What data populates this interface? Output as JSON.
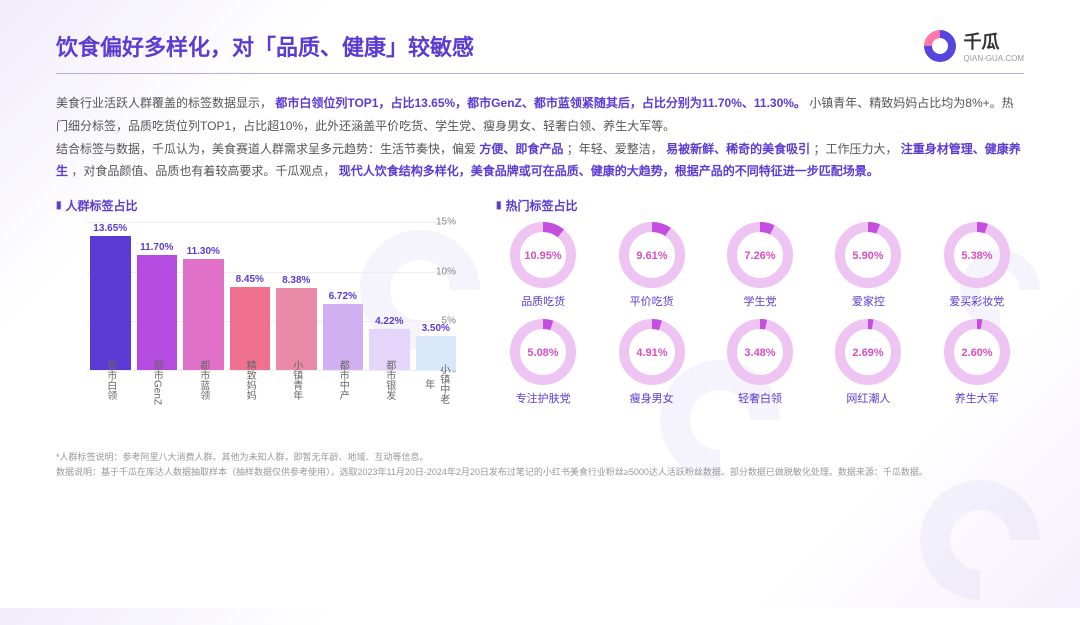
{
  "header": {
    "title": "饮食偏好多样化，对「品质、健康」较敏感",
    "logo_text": "千瓜",
    "logo_sub": "QIAN-GUA.COM"
  },
  "description": {
    "line1_a": "美食行业活跃人群覆盖的标签数据显示，",
    "line1_hl1": "都市白领位列TOP1，占比13.65%，都市GenZ、都市蓝领紧随其后，占比分别为11.70%、11.30%。",
    "line1_b": "小镇青年、精致妈妈占比均为8%+。热门细分标签，品质吃货位列TOP1，占比超10%，此外还涵盖平价吃货、学生党、瘦身男女、轻奢白领、养生大军等。",
    "line2_a": "结合标签与数据，千瓜认为，美食赛道人群需求呈多元趋势：生活节奏快，偏爱",
    "line2_hl1": "方便、即食产品",
    "line2_b": "；年轻、爱整洁，",
    "line2_hl2": "易被新鲜、稀奇的美食吸引",
    "line2_c": "；工作压力大，",
    "line2_hl3": "注重身材管理、健康养生",
    "line2_d": "，对食品颜值、品质也有着较高要求。千瓜观点，",
    "line2_hl4": "现代人饮食结构多样化，美食品牌或可在品质、健康的大趋势，根据产品的不同特征进一步匹配场景。"
  },
  "bar_chart": {
    "title": "人群标签占比",
    "type": "bar",
    "y_ticks": [
      0,
      5,
      10,
      15
    ],
    "y_suffix": "%",
    "ylim_max": 15,
    "grid_color": "#eeeeee",
    "label_color": "#5b3bd4",
    "bars": [
      {
        "label": "都市白领",
        "value": 13.65,
        "value_text": "13.65%",
        "color": "#5b3bd4"
      },
      {
        "label": "都市GenZ",
        "value": 11.7,
        "value_text": "11.70%",
        "color": "#b54be0"
      },
      {
        "label": "都市蓝领",
        "value": 11.3,
        "value_text": "11.30%",
        "color": "#e070c8"
      },
      {
        "label": "精致妈妈",
        "value": 8.45,
        "value_text": "8.45%",
        "color": "#f07090"
      },
      {
        "label": "小镇青年",
        "value": 8.38,
        "value_text": "8.38%",
        "color": "#e88aa8"
      },
      {
        "label": "都市中产",
        "value": 6.72,
        "value_text": "6.72%",
        "color": "#d0b0f0"
      },
      {
        "label": "都市银发",
        "value": 4.22,
        "value_text": "4.22%",
        "color": "#e5d5fa"
      },
      {
        "label": "小镇中老年",
        "value": 3.5,
        "value_text": "3.50%",
        "color": "#d8e8fa"
      }
    ]
  },
  "donut_chart": {
    "title": "热门标签占比",
    "type": "donut",
    "ring_color": "#eec4f3",
    "arc_color": "#c34ee0",
    "pct_color": "#d94fc0",
    "label_color": "#5b3bd4",
    "ring_width": 10,
    "items": [
      {
        "label": "品质吃货",
        "value": 10.95,
        "value_text": "10.95%"
      },
      {
        "label": "平价吃货",
        "value": 9.61,
        "value_text": "9.61%"
      },
      {
        "label": "学生党",
        "value": 7.26,
        "value_text": "7.26%"
      },
      {
        "label": "爱家控",
        "value": 5.9,
        "value_text": "5.90%"
      },
      {
        "label": "爱买彩妆党",
        "value": 5.38,
        "value_text": "5.38%"
      },
      {
        "label": "专注护肤党",
        "value": 5.08,
        "value_text": "5.08%"
      },
      {
        "label": "瘦身男女",
        "value": 4.91,
        "value_text": "4.91%"
      },
      {
        "label": "轻奢白领",
        "value": 3.48,
        "value_text": "3.48%"
      },
      {
        "label": "网红潮人",
        "value": 2.69,
        "value_text": "2.69%"
      },
      {
        "label": "养生大军",
        "value": 2.6,
        "value_text": "2.60%"
      }
    ]
  },
  "footnote": {
    "line1": "*人群标签说明：参考阿里八大消费人群。其他为未知人群，即暂无年龄、地域、互动等信息。",
    "line2": "数据说明：基于千瓜在库达人数据抽取样本（抽样数据仅供参考使用），选取2023年11月20日-2024年2月20日发布过笔记的小红书美食行业粉丝≥5000达人活跃粉丝数据。部分数据已做脱敏化处理。数据来源：千瓜数据。"
  }
}
